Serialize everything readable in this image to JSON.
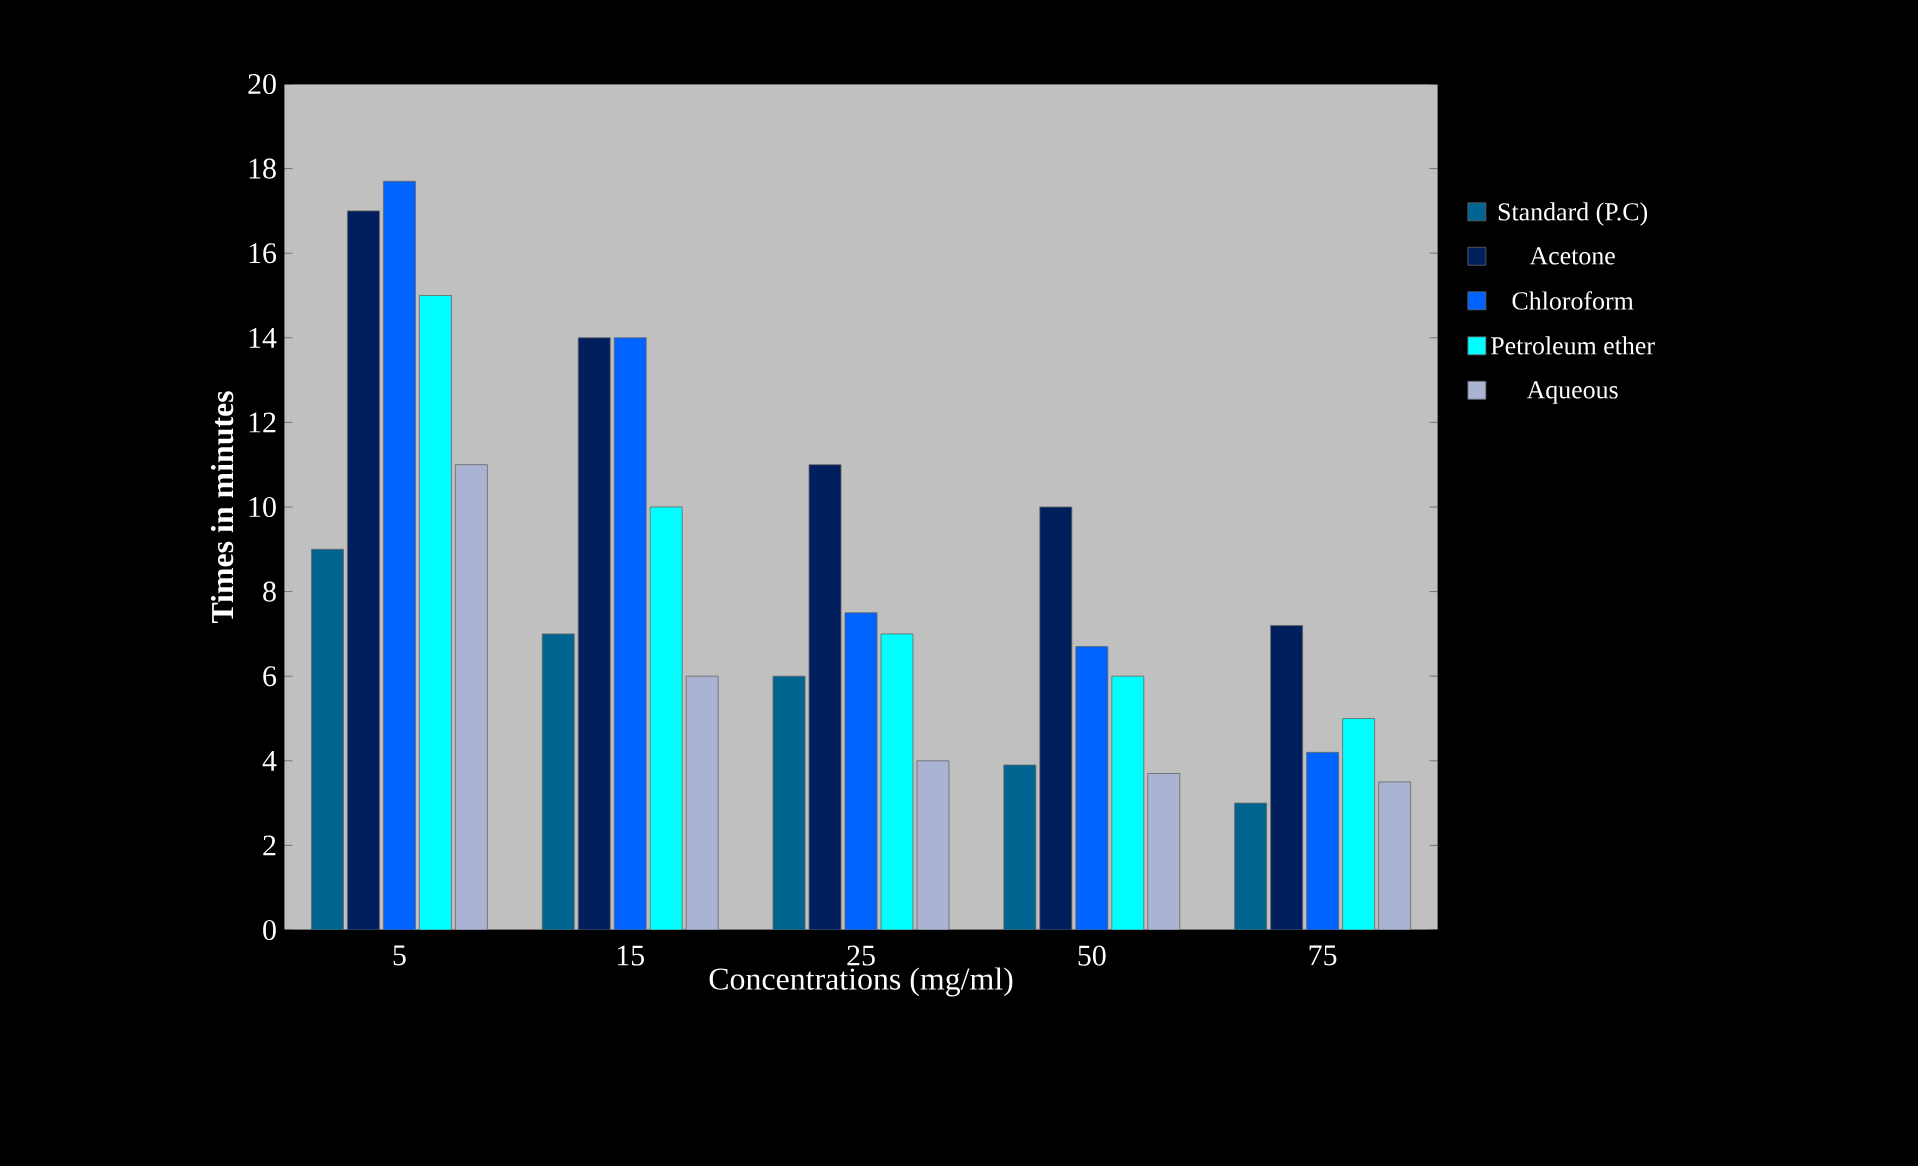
{
  "chart_data": {
    "type": "bar",
    "xlabel": "Concentrations (mg/ml)",
    "ylabel": "Times in minutes",
    "categories": [
      "5",
      "15",
      "25",
      "50",
      "75"
    ],
    "series": [
      {
        "name": "Standard (P.C)",
        "color": "#006491",
        "values": [
          9,
          7,
          6,
          3.9,
          3
        ]
      },
      {
        "name": "Acetone",
        "color": "#001f5c",
        "values": [
          17,
          14,
          11,
          10,
          7.2
        ]
      },
      {
        "name": "Chloroform",
        "color": "#0062ff",
        "values": [
          17.7,
          14,
          7.5,
          6.7,
          4.2
        ]
      },
      {
        "name": "Petroleum ether",
        "color": "#00ffff",
        "values": [
          15,
          10,
          7,
          6,
          5
        ]
      },
      {
        "name": "Aqueous",
        "color": "#aab4d2",
        "values": [
          11,
          6,
          4,
          3.7,
          3.5
        ]
      }
    ],
    "ylim": [
      0,
      20
    ],
    "yticks": [
      0,
      2,
      4,
      6,
      8,
      10,
      12,
      14,
      16,
      18,
      20
    ],
    "grid": false,
    "legend": "right"
  }
}
